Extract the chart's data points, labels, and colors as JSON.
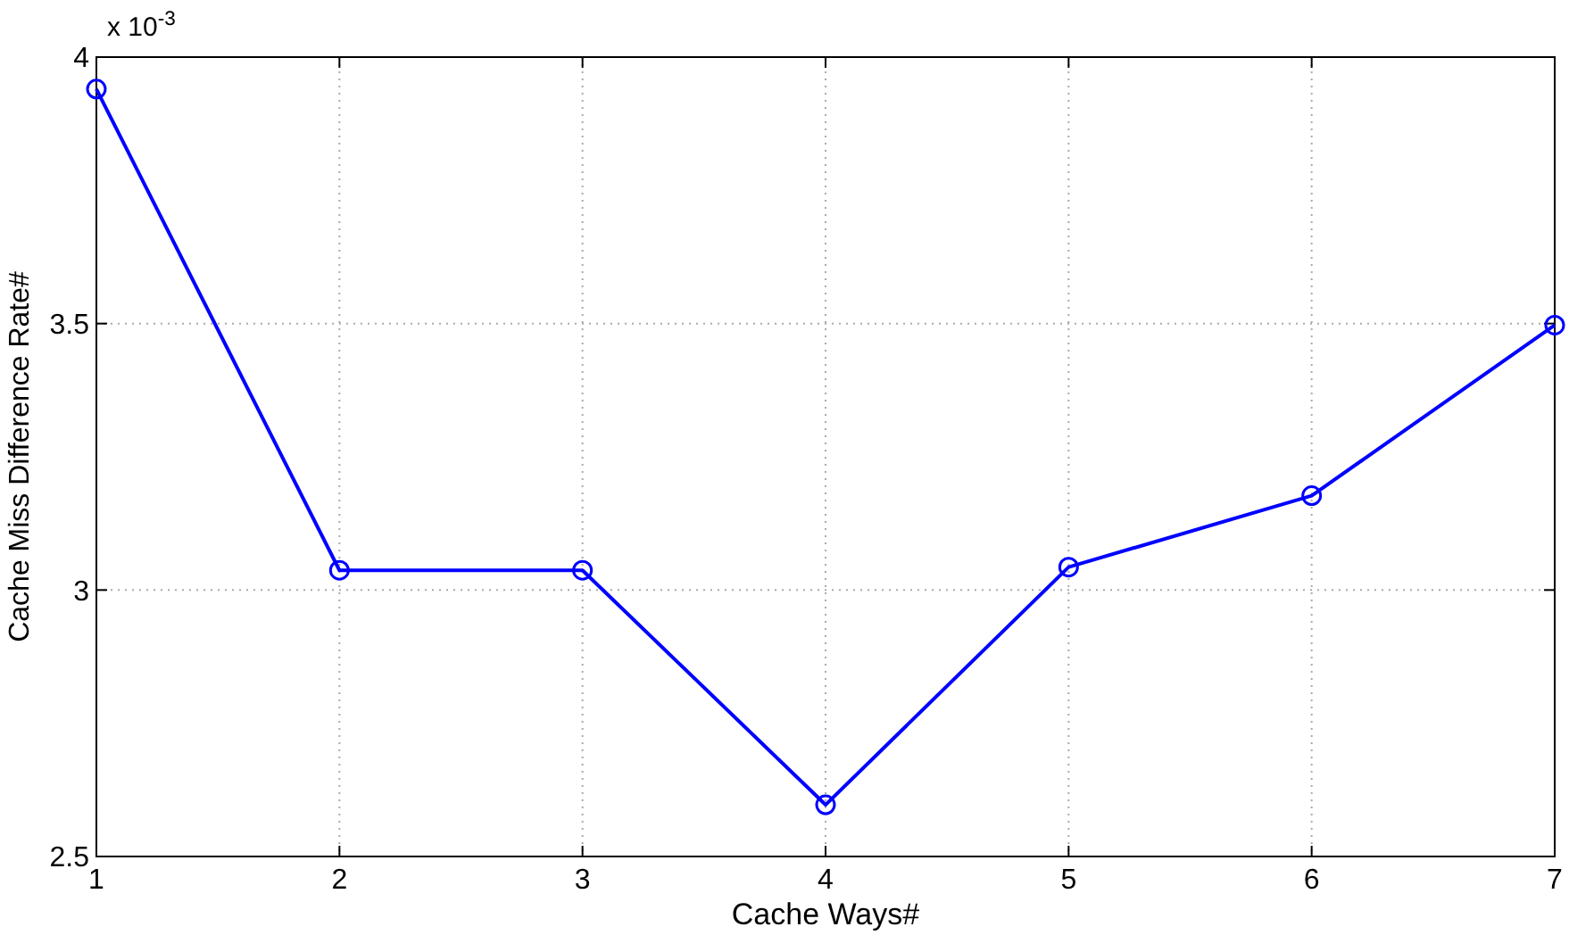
{
  "chart_data": {
    "type": "line",
    "xlabel": "Cache Ways#",
    "ylabel": "Cache Miss Difference Rate#",
    "annotations": [
      "x 10$^{-3}$"
    ],
    "x": [
      1,
      2,
      3,
      4,
      5,
      6,
      7
    ],
    "series": [
      {
        "color": "#0000ff",
        "values": [
          3.94,
          3.037,
          3.037,
          2.597,
          3.043,
          3.177,
          3.497
        ]
      }
    ],
    "xlim": [
      1,
      7
    ],
    "xticks": [
      1,
      2,
      3,
      4,
      5,
      6,
      7
    ],
    "ylim": [
      2.5,
      4
    ],
    "yticks": [
      2.5,
      3,
      3.5,
      4
    ],
    "grid": true,
    "marker": "circle",
    "line_style": "solid"
  }
}
